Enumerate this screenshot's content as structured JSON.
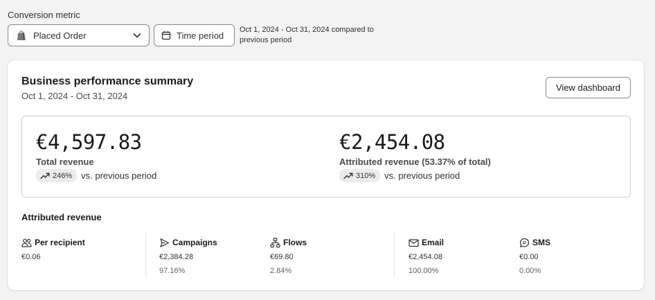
{
  "header": {
    "metric_label": "Conversion metric",
    "metric_selected": "Placed Order",
    "time_button": "Time period",
    "period_text": "Oct 1, 2024 - Oct 31, 2024 compared to previous period"
  },
  "card": {
    "title": "Business performance summary",
    "subtitle": "Oct 1, 2024 - Oct 31, 2024",
    "view_button": "View dashboard"
  },
  "kpis": [
    {
      "value": "€4,597.83",
      "label": "Total revenue",
      "change": "246%",
      "comparison": "vs. previous period"
    },
    {
      "value": "€2,454.08",
      "label": "Attributed revenue (53.37% of total)",
      "change": "310%",
      "comparison": "vs. previous period"
    }
  ],
  "attributed": {
    "title": "Attributed revenue",
    "stats": [
      {
        "label": "Per recipient",
        "icon": "people-icon",
        "value": "€0.06",
        "percent": ""
      },
      {
        "label": "Campaigns",
        "icon": "send-icon",
        "value": "€2,384.28",
        "percent": "97.16%"
      },
      {
        "label": "Flows",
        "icon": "flow-icon",
        "value": "€69.80",
        "percent": "2.84%"
      },
      {
        "label": "Email",
        "icon": "mail-icon",
        "value": "€2,454.08",
        "percent": "100.00%"
      },
      {
        "label": "SMS",
        "icon": "sms-icon",
        "value": "€0.00",
        "percent": "0.00%"
      }
    ]
  },
  "colors": {
    "background": "#f3f3f3",
    "card": "#ffffff",
    "badge": "#ebebeb",
    "text": "#303030"
  }
}
